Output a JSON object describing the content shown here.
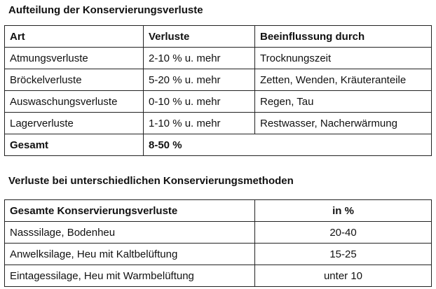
{
  "table1": {
    "title": "Aufteilung der Konservierungsverluste",
    "headers": [
      "Art",
      "Verluste",
      "Beeinflussung durch"
    ],
    "rows": [
      [
        "Atmungsverluste",
        "2-10 % u. mehr",
        "Trocknungszeit"
      ],
      [
        "Bröckelverluste",
        "5-20 % u. mehr",
        "Zetten, Wenden, Kräuteranteile"
      ],
      [
        "Auswaschungsverluste",
        "0-10 % u. mehr",
        "Regen, Tau"
      ],
      [
        "Lagerverluste",
        "1-10 % u. mehr",
        "Restwasser, Nacherwärmung"
      ]
    ],
    "total": [
      "Gesamt",
      "8-50 %"
    ]
  },
  "table2": {
    "title": "Verluste bei unterschiedlichen Konservierungsmethoden",
    "headers": [
      "Gesamte Konservierungsverluste",
      "in %"
    ],
    "rows": [
      [
        "Nasssilage, Bodenheu",
        "20-40"
      ],
      [
        "Anwelksilage, Heu mit Kaltbelüftung",
        "15-25"
      ],
      [
        "Eintagessilage, Heu mit Warmbelüftung",
        "unter 10"
      ]
    ]
  }
}
